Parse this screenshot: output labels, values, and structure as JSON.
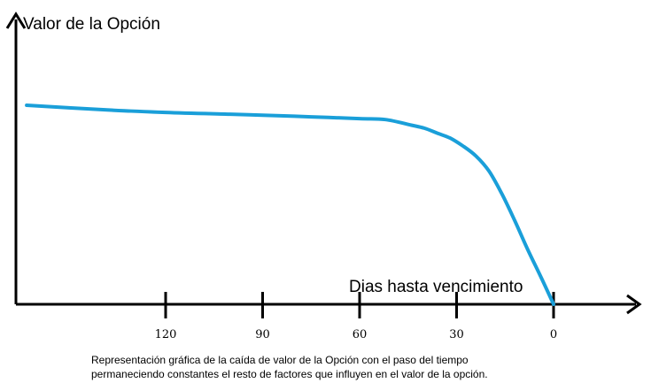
{
  "chart_data": {
    "type": "line",
    "ylabel": "Valor de la Opción",
    "xlabel": "Dias hasta vencimiento",
    "x_ticks": [
      120,
      90,
      60,
      30,
      0
    ],
    "x_tick_labels": [
      "120",
      "90",
      "60",
      "30",
      "0"
    ],
    "x_reversed": true,
    "xlim": [
      165,
      -25
    ],
    "ylim": [
      0,
      10
    ],
    "grid": false,
    "legend": "none",
    "series": [
      {
        "color": "#1a9fd9",
        "x": [
          163,
          140,
          120,
          100,
          90,
          75,
          60,
          52,
          44,
          40,
          36,
          32,
          28,
          24,
          20,
          16,
          12,
          8,
          4,
          0
        ],
        "y": [
          10.0,
          9.78,
          9.64,
          9.55,
          9.5,
          9.42,
          9.33,
          9.28,
          9.0,
          8.85,
          8.6,
          8.35,
          7.95,
          7.45,
          6.7,
          5.55,
          4.2,
          2.75,
          1.4,
          0.0
        ]
      }
    ]
  },
  "caption": {
    "line1": "Representación gráfica de la caída de valor de la Opción con el paso del tiempo",
    "line2": "permaneciendo constantes el resto de factores que influyen en el valor de la opción."
  }
}
